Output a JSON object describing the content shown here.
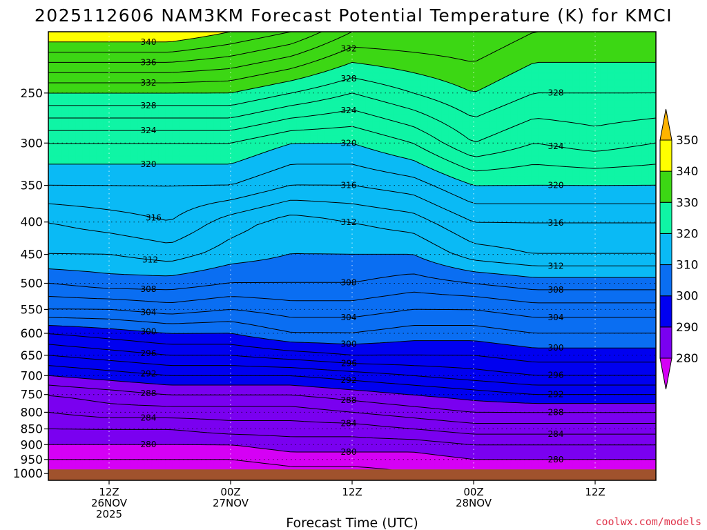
{
  "title": "2025112606 NAM3KM Forecast Potential Temperature (K) for KMCI",
  "credit": "coolwx.com/models",
  "colors": {
    "ground": "#a0522d",
    "bands": [
      {
        "from": 270,
        "to": 280,
        "color": "#d500f5"
      },
      {
        "from": 280,
        "to": 290,
        "color": "#7a00f0"
      },
      {
        "from": 290,
        "to": 300,
        "color": "#0000f0"
      },
      {
        "from": 300,
        "to": 310,
        "color": "#0a6ef2"
      },
      {
        "from": 310,
        "to": 320,
        "color": "#0abaf5"
      },
      {
        "from": 320,
        "to": 330,
        "color": "#0ff5a5"
      },
      {
        "from": 330,
        "to": 340,
        "color": "#3cd714"
      },
      {
        "from": 340,
        "to": 350,
        "color": "#ffff00"
      },
      {
        "from": 350,
        "to": 360,
        "color": "#ffb400"
      }
    ]
  },
  "chart_data": {
    "type": "contour",
    "title": "2025112606 NAM3KM Forecast Potential Temperature (K) for KMCI",
    "xlabel": "Forecast Time (UTC)",
    "ylabel": "",
    "x_ticks": [
      {
        "hour": 6,
        "lines": [
          "12Z",
          "26NOV",
          "2025"
        ]
      },
      {
        "hour": 18,
        "lines": [
          "00Z",
          "27NOV"
        ]
      },
      {
        "hour": 30,
        "lines": [
          "12Z"
        ]
      },
      {
        "hour": 42,
        "lines": [
          "00Z",
          "28NOV"
        ]
      },
      {
        "hour": 54,
        "lines": [
          "12Z"
        ]
      }
    ],
    "xlim": [
      0,
      60
    ],
    "y_ticks": [
      250,
      300,
      350,
      400,
      450,
      500,
      550,
      600,
      650,
      700,
      750,
      800,
      850,
      900,
      950,
      1000
    ],
    "ylim": [
      1025,
      200
    ],
    "y_scale": "log",
    "contour_interval": 2,
    "labeled_contours_interval": 4,
    "surface_pressure": 985,
    "colorbar": {
      "ticks": [
        "280",
        "290",
        "300",
        "310",
        "320",
        "330",
        "340",
        "350"
      ],
      "min": 280,
      "max": 350,
      "extend": "both"
    },
    "profile_hours": [
      0,
      6,
      12,
      18,
      24,
      30,
      36,
      42,
      48,
      54,
      60
    ],
    "theta_levels_hpa": [
      1000,
      950,
      900,
      850,
      800,
      750,
      700,
      650,
      600,
      550,
      500,
      450,
      400,
      350,
      300,
      250,
      200
    ],
    "theta_profiles": [
      [
        276,
        278,
        280,
        282,
        284,
        286,
        290,
        294,
        298,
        304,
        308,
        312,
        314,
        318,
        322,
        330,
        342
      ],
      [
        276,
        278,
        280,
        282,
        285,
        287,
        291,
        295,
        299,
        304,
        309,
        312,
        315,
        318,
        322,
        330,
        342
      ],
      [
        276,
        278,
        280,
        282,
        285,
        288,
        292,
        296,
        300,
        305,
        309,
        313,
        316,
        318,
        322,
        330,
        342
      ],
      [
        276,
        278,
        280,
        283,
        285,
        288,
        292,
        296,
        300,
        304,
        308,
        311,
        313,
        318,
        322,
        330,
        340
      ],
      [
        277,
        279,
        281,
        283,
        285,
        288,
        292,
        297,
        302,
        305,
        308,
        310,
        311,
        316,
        320,
        328,
        338
      ],
      [
        277,
        279,
        281,
        283,
        286,
        289,
        293,
        298,
        302,
        305,
        308,
        310,
        312,
        316,
        320,
        326,
        334
      ],
      [
        278,
        279,
        281,
        284,
        287,
        290,
        294,
        298,
        301,
        304,
        307,
        310,
        313,
        317,
        322,
        328,
        334
      ],
      [
        278,
        280,
        282,
        285,
        288,
        291,
        295,
        298,
        301,
        304,
        308,
        313,
        316,
        320,
        326,
        330,
        334
      ],
      [
        278,
        280,
        282,
        285,
        288,
        292,
        296,
        299,
        302,
        305,
        309,
        314,
        316,
        320,
        324,
        328,
        332
      ],
      [
        278,
        280,
        282,
        285,
        288,
        292,
        296,
        299,
        302,
        305,
        309,
        314,
        316,
        320,
        325,
        328,
        332
      ],
      [
        278,
        280,
        282,
        285,
        288,
        292,
        296,
        299,
        302,
        305,
        309,
        314,
        316,
        320,
        324,
        328,
        332
      ]
    ]
  }
}
